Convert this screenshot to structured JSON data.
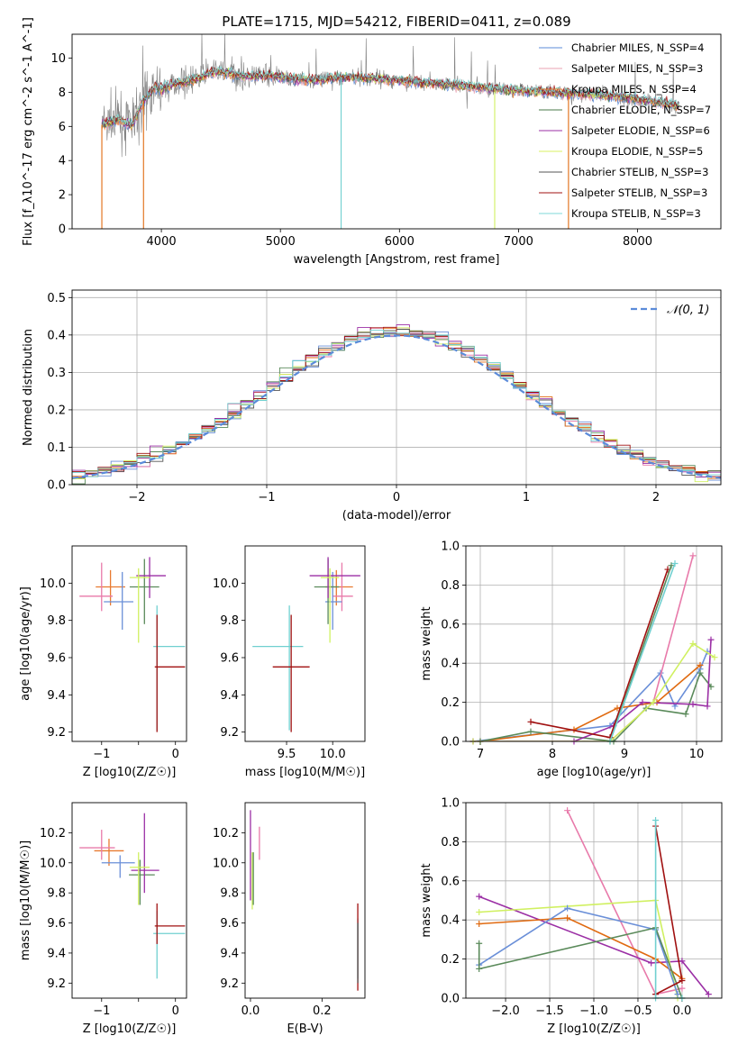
{
  "title": "PLATE=1715, MJD=54212, FIBERID=0411, z=0.089",
  "colors": {
    "chabrier_miles": "#5b8bd9",
    "salpeter_miles": "#e8a0b0",
    "kroupa_miles": "#e87a30",
    "chabrier_elodie": "#4a7a4a",
    "salpeter_elodie": "#9b2fa5",
    "kroupa_elodie": "#d8f060",
    "chabrier_stelib": "#555555",
    "salpeter_stelib": "#a01010",
    "kroupa_stelib": "#7fd8d8",
    "data": "#808080",
    "normal_curve": "#5b8bd9",
    "pink": "#e87aaa",
    "orange": "#e06a10",
    "green": "#5a8a5a",
    "teal": "#70d0d0",
    "yellow": "#d0f060",
    "purple": "#9b2fa5",
    "blue": "#6a8fd8",
    "red": "#a01010"
  },
  "chart_data": [
    {
      "type": "line",
      "id": "spectrum",
      "xlabel": "wavelength [Angstrom, rest frame]",
      "ylabel": "Flux [f_λ10^-17 erg cm^-2 s^-1 A^-1]",
      "xlim": [
        3250,
        8700
      ],
      "ylim": [
        0,
        11.4
      ],
      "xticks": [
        4000,
        5000,
        6000,
        7000,
        8000
      ],
      "yticks": [
        0,
        2,
        4,
        6,
        8,
        10
      ],
      "legend_position": "top-right",
      "legend": [
        {
          "label": "Chabrier MILES, N_SSP=4",
          "color": "#5b8bd9"
        },
        {
          "label": "Salpeter MILES, N_SSP=3",
          "color": "#e8a0b0"
        },
        {
          "label": "Kroupa MILES, N_SSP=4",
          "color": "#e87a30"
        },
        {
          "label": "Chabrier ELODIE, N_SSP=7",
          "color": "#4a7a4a"
        },
        {
          "label": "Salpeter ELODIE, N_SSP=6",
          "color": "#9b2fa5"
        },
        {
          "label": "Kroupa ELODIE, N_SSP=5",
          "color": "#d8f060"
        },
        {
          "label": "Chabrier STELIB, N_SSP=3",
          "color": "#555555"
        },
        {
          "label": "Salpeter STELIB, N_SSP=3",
          "color": "#a01010"
        },
        {
          "label": "Kroupa STELIB, N_SSP=3",
          "color": "#7fd8d8"
        }
      ],
      "continuum_points": [
        [
          3500,
          6.1
        ],
        [
          3650,
          6.4
        ],
        [
          3750,
          6.0
        ],
        [
          3850,
          7.5
        ],
        [
          3950,
          8.3
        ],
        [
          4000,
          8.2
        ],
        [
          4100,
          8.5
        ],
        [
          4200,
          8.6
        ],
        [
          4300,
          8.8
        ],
        [
          4400,
          9.1
        ],
        [
          4500,
          9.2
        ],
        [
          4700,
          8.9
        ],
        [
          4900,
          9.0
        ],
        [
          5100,
          8.8
        ],
        [
          5300,
          8.7
        ],
        [
          5500,
          8.9
        ],
        [
          5800,
          8.8
        ],
        [
          6000,
          8.7
        ],
        [
          6300,
          8.5
        ],
        [
          6500,
          8.4
        ],
        [
          6800,
          8.2
        ],
        [
          7000,
          8.1
        ],
        [
          7300,
          8.0
        ],
        [
          7600,
          7.9
        ],
        [
          7900,
          7.7
        ],
        [
          8200,
          7.4
        ],
        [
          8350,
          7.2
        ]
      ]
    },
    {
      "type": "line",
      "id": "residual_histogram",
      "xlabel": "(data-model)/error",
      "ylabel": "Normed distribution",
      "xlim": [
        -2.5,
        2.5
      ],
      "ylim": [
        0,
        0.52
      ],
      "xticks": [
        -2,
        -1,
        0,
        1,
        2
      ],
      "yticks": [
        0.0,
        0.1,
        0.2,
        0.3,
        0.4,
        0.5
      ],
      "grid": true,
      "legend_position": "top-right",
      "legend": [
        {
          "label": "𝒩(0, 1)",
          "color": "#5b8bd9"
        }
      ],
      "normal": {
        "mean": 0,
        "sigma": 1
      }
    },
    {
      "type": "scatter",
      "id": "age_vs_Z",
      "xlabel": "Z [log10(Z/Z☉)]",
      "ylabel": "age  [log10(age/yr)]",
      "xlim": [
        -1.4,
        0.15
      ],
      "ylim": [
        9.15,
        10.2
      ],
      "xticks": [
        -1,
        -0.5,
        0
      ],
      "xticklabels": [
        "−1",
        "",
        "0"
      ],
      "yticks": [
        9.2,
        9.4,
        9.6,
        9.8,
        10.0
      ],
      "points": [
        {
          "x": -0.88,
          "y": 9.98,
          "xerr": [
            0.2,
            0.2
          ],
          "yerr": [
            0.1,
            0.09
          ],
          "color": "#e87a30"
        },
        {
          "x": -1.0,
          "y": 9.93,
          "xerr": [
            0.3,
            0.15
          ],
          "yerr": [
            0.08,
            0.18
          ],
          "color": "#e87aaa"
        },
        {
          "x": -0.72,
          "y": 9.9,
          "xerr": [
            0.25,
            0.15
          ],
          "yerr": [
            0.15,
            0.16
          ],
          "color": "#6a8fd8"
        },
        {
          "x": -0.42,
          "y": 9.98,
          "xerr": [
            0.2,
            0.2
          ],
          "yerr": [
            0.2,
            0.15
          ],
          "color": "#5a8a5a"
        },
        {
          "x": -0.35,
          "y": 10.04,
          "xerr": [
            0.18,
            0.22
          ],
          "yerr": [
            0.12,
            0.1
          ],
          "color": "#9b2fa5"
        },
        {
          "x": -0.5,
          "y": 10.03,
          "xerr": [
            0.12,
            0.15
          ],
          "yerr": [
            0.35,
            0.05
          ],
          "color": "#d0f060"
        },
        {
          "x": -0.25,
          "y": 9.66,
          "xerr": [
            0.05,
            0.38
          ],
          "yerr": [
            0.45,
            0.22
          ],
          "color": "#70d0d0"
        },
        {
          "x": -0.25,
          "y": 9.55,
          "xerr": [
            0.03,
            0.38
          ],
          "yerr": [
            0.35,
            0.28
          ],
          "color": "#a01010"
        }
      ]
    },
    {
      "type": "scatter",
      "id": "age_vs_mass",
      "xlabel": "mass [log10(M/M☉)]",
      "ylabel": "",
      "xlim": [
        9.05,
        10.35
      ],
      "ylim": [
        9.15,
        10.2
      ],
      "xticks": [
        9.5,
        10.0
      ],
      "yticks": [
        9.2,
        9.4,
        9.6,
        9.8,
        10.0
      ],
      "points": [
        {
          "x": 10.04,
          "y": 9.98,
          "xerr": [
            0.12,
            0.18
          ],
          "yerr": [
            0.1,
            0.09
          ],
          "color": "#e87a30"
        },
        {
          "x": 10.1,
          "y": 9.93,
          "xerr": [
            0.1,
            0.12
          ],
          "yerr": [
            0.08,
            0.18
          ],
          "color": "#e87aaa"
        },
        {
          "x": 10.0,
          "y": 9.9,
          "xerr": [
            0.08,
            0.1
          ],
          "yerr": [
            0.15,
            0.16
          ],
          "color": "#6a8fd8"
        },
        {
          "x": 9.95,
          "y": 9.98,
          "xerr": [
            0.15,
            0.12
          ],
          "yerr": [
            0.2,
            0.15
          ],
          "color": "#5a8a5a"
        },
        {
          "x": 9.95,
          "y": 10.04,
          "xerr": [
            0.2,
            0.35
          ],
          "yerr": [
            0.12,
            0.1
          ],
          "color": "#9b2fa5"
        },
        {
          "x": 9.97,
          "y": 10.03,
          "xerr": [
            0.1,
            0.1
          ],
          "yerr": [
            0.35,
            0.05
          ],
          "color": "#d0f060"
        },
        {
          "x": 9.53,
          "y": 9.66,
          "xerr": [
            0.4,
            0.15
          ],
          "yerr": [
            0.45,
            0.22
          ],
          "color": "#70d0d0"
        },
        {
          "x": 9.55,
          "y": 9.55,
          "xerr": [
            0.2,
            0.2
          ],
          "yerr": [
            0.35,
            0.28
          ],
          "color": "#a01010"
        }
      ]
    },
    {
      "type": "line",
      "id": "massweight_vs_age",
      "xlabel": "age  [log10(age/yr)]",
      "ylabel": "mass weight",
      "xlim": [
        6.8,
        10.35
      ],
      "ylim": [
        0,
        1.0
      ],
      "xticks": [
        7,
        8,
        9,
        10
      ],
      "yticks": [
        0.0,
        0.2,
        0.4,
        0.6,
        0.8,
        1.0
      ],
      "grid": true,
      "series": [
        {
          "color": "#6a8fd8",
          "x": [
            6.9,
            8.8,
            9.5,
            9.7,
            10.05,
            10.15
          ],
          "y": [
            0.0,
            0.08,
            0.35,
            0.18,
            0.37,
            0.46
          ]
        },
        {
          "color": "#e87aaa",
          "x": [
            6.9,
            8.8,
            9.4,
            9.95
          ],
          "y": [
            0.0,
            0.0,
            0.2,
            0.95
          ]
        },
        {
          "color": "#e06a10",
          "x": [
            7.0,
            8.3,
            8.9,
            9.45,
            10.05
          ],
          "y": [
            0.0,
            0.06,
            0.17,
            0.2,
            0.39
          ]
        },
        {
          "color": "#5a8a5a",
          "x": [
            7.0,
            7.7,
            8.85,
            9.3,
            9.85,
            10.05,
            10.2
          ],
          "y": [
            0.0,
            0.05,
            0.0,
            0.17,
            0.14,
            0.35,
            0.28
          ]
        },
        {
          "color": "#9b2fa5",
          "x": [
            6.9,
            8.3,
            8.85,
            9.25,
            9.95,
            10.15,
            10.2
          ],
          "y": [
            0.0,
            0.0,
            0.08,
            0.2,
            0.19,
            0.18,
            0.52
          ]
        },
        {
          "color": "#d0f060",
          "x": [
            6.9,
            8.8,
            9.4,
            9.95,
            10.25
          ],
          "y": [
            0.0,
            0.0,
            0.2,
            0.5,
            0.43
          ]
        },
        {
          "color": "#a01010",
          "x": [
            7.7,
            8.8,
            9.6
          ],
          "y": [
            0.1,
            0.02,
            0.88
          ]
        },
        {
          "color": "#5a8a5a",
          "x": [
            8.8,
            9.65
          ],
          "y": [
            0.0,
            0.9
          ]
        },
        {
          "color": "#70d0d0",
          "x": [
            8.8,
            9.7
          ],
          "y": [
            0.0,
            0.91
          ]
        }
      ]
    },
    {
      "type": "scatter",
      "id": "mass_vs_Z",
      "xlabel": "Z [log10(Z/Z☉)]",
      "ylabel": "mass [log10(M/M☉)]",
      "xlim": [
        -1.4,
        0.15
      ],
      "ylim": [
        9.1,
        10.4
      ],
      "xticks": [
        -1,
        -0.5,
        0
      ],
      "xticklabels": [
        "−1",
        "",
        "0"
      ],
      "yticks": [
        9.2,
        9.4,
        9.6,
        9.8,
        10.0,
        10.2
      ],
      "points": [
        {
          "x": -0.9,
          "y": 10.08,
          "xerr": [
            0.2,
            0.2
          ],
          "yerr": [
            0.1,
            0.08
          ],
          "color": "#e87a30"
        },
        {
          "x": -1.0,
          "y": 10.1,
          "xerr": [
            0.3,
            0.18
          ],
          "yerr": [
            0.08,
            0.12
          ],
          "color": "#e87aaa"
        },
        {
          "x": -0.75,
          "y": 10.0,
          "xerr": [
            0.25,
            0.2
          ],
          "yerr": [
            0.1,
            0.05
          ],
          "color": "#6a8fd8"
        },
        {
          "x": -0.48,
          "y": 9.92,
          "xerr": [
            0.15,
            0.2
          ],
          "yerr": [
            0.2,
            0.1
          ],
          "color": "#5a8a5a"
        },
        {
          "x": -0.42,
          "y": 9.95,
          "xerr": [
            0.18,
            0.2
          ],
          "yerr": [
            0.15,
            0.38
          ],
          "color": "#9b2fa5"
        },
        {
          "x": -0.5,
          "y": 9.97,
          "xerr": [
            0.12,
            0.15
          ],
          "yerr": [
            0.25,
            0.1
          ],
          "color": "#d0f060"
        },
        {
          "x": -0.25,
          "y": 9.53,
          "xerr": [
            0.05,
            0.38
          ],
          "yerr": [
            0.3,
            0.15
          ],
          "color": "#70d0d0"
        },
        {
          "x": -0.25,
          "y": 9.58,
          "xerr": [
            0.03,
            0.38
          ],
          "yerr": [
            0.12,
            0.15
          ],
          "color": "#a01010"
        }
      ]
    },
    {
      "type": "scatter",
      "id": "mass_vs_EBV",
      "xlabel": "E(B-V)",
      "ylabel": "",
      "xlim": [
        -0.015,
        0.32
      ],
      "ylim": [
        9.1,
        10.4
      ],
      "xticks": [
        0.0,
        0.2
      ],
      "yticks": [
        9.2,
        9.4,
        9.6,
        9.8,
        10.0,
        10.2
      ],
      "points": [
        {
          "x": 0.0,
          "y": 10.0,
          "yerr": [
            0.25,
            0.35
          ],
          "color": "#9b2fa5"
        },
        {
          "x": 0.005,
          "y": 9.97,
          "yerr": [
            0.28,
            0.1
          ],
          "color": "#d0f060"
        },
        {
          "x": 0.008,
          "y": 9.92,
          "yerr": [
            0.2,
            0.15
          ],
          "color": "#5a8a5a"
        },
        {
          "x": 0.025,
          "y": 10.12,
          "yerr": [
            0.1,
            0.12
          ],
          "color": "#e87aaa"
        },
        {
          "x": 0.3,
          "y": 9.53,
          "yerr": [
            0.3,
            0.1
          ],
          "color": "#70d0d0"
        },
        {
          "x": 0.3,
          "y": 9.45,
          "yerr": [
            0.3,
            0.28
          ],
          "color": "#a01010"
        },
        {
          "x": 0.3,
          "y": 9.4,
          "yerr": [
            0.2,
            0.2
          ],
          "color": "#555555"
        }
      ]
    },
    {
      "type": "line",
      "id": "massweight_vs_Z",
      "xlabel": "Z [log10(Z/Z☉)]",
      "ylabel": "mass weight",
      "xlim": [
        -2.45,
        0.45
      ],
      "ylim": [
        0,
        1.0
      ],
      "xticks": [
        -2.0,
        -1.5,
        -1.0,
        -0.5,
        0.0
      ],
      "yticks": [
        0.0,
        0.2,
        0.4,
        0.6,
        0.8,
        1.0
      ],
      "grid": true,
      "series": [
        {
          "color": "#e87aaa",
          "x": [
            -1.3,
            -0.3,
            0.0
          ],
          "y": [
            0.96,
            0.02,
            0.05
          ]
        },
        {
          "color": "#9b2fa5",
          "x": [
            -2.3,
            -0.35,
            0.0,
            0.3
          ],
          "y": [
            0.52,
            0.18,
            0.19,
            0.02
          ]
        },
        {
          "color": "#d0f060",
          "x": [
            -2.3,
            -0.3,
            -0.05
          ],
          "y": [
            0.44,
            0.5,
            0.0
          ]
        },
        {
          "color": "#e06a10",
          "x": [
            -2.3,
            -1.3,
            -0.3,
            0.0
          ],
          "y": [
            0.38,
            0.41,
            0.2,
            0.1
          ]
        },
        {
          "color": "#6a8fd8",
          "x": [
            -2.3,
            -1.3,
            -0.3,
            -0.05
          ],
          "y": [
            0.17,
            0.46,
            0.35,
            0.02
          ]
        },
        {
          "color": "#5a8a5a",
          "x": [
            -2.3,
            -2.3,
            -0.3,
            0.0
          ],
          "y": [
            0.28,
            0.15,
            0.36,
            0.0
          ]
        },
        {
          "color": "#a01010",
          "x": [
            -0.3,
            0.0,
            -0.3
          ],
          "y": [
            0.02,
            0.09,
            0.88
          ]
        },
        {
          "color": "#70d0d0",
          "x": [
            -0.3,
            -0.3,
            0.0
          ],
          "y": [
            0.91,
            0.0,
            0.0
          ]
        }
      ]
    }
  ]
}
